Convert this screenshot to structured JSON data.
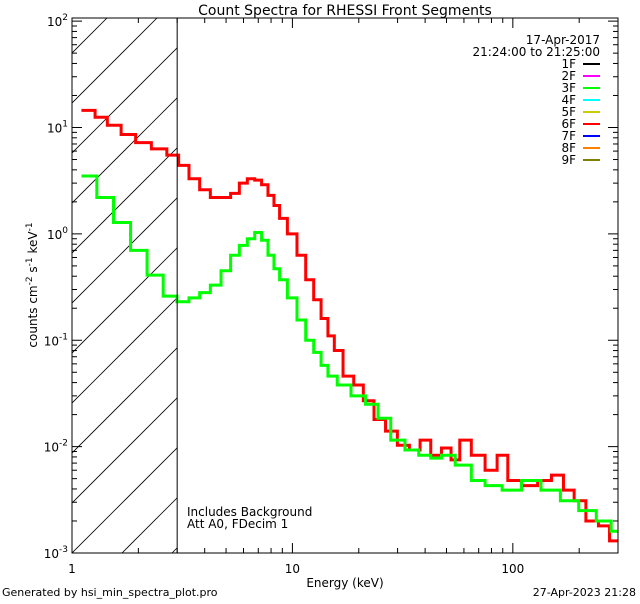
{
  "chart_data": {
    "type": "line",
    "title": "Count Spectra for RHESSI Front Segments",
    "xlabel": "Energy (keV)",
    "ylabel": "counts cm-2 s-1 keV-1",
    "xscale": "log",
    "yscale": "log",
    "xlim": [
      1,
      300
    ],
    "ylim": [
      0.001,
      107
    ],
    "x_ticks": [
      "1",
      "10",
      "100"
    ],
    "y_ticks": [
      {
        "base": "10",
        "exp": "2"
      },
      {
        "base": "10",
        "exp": "1"
      },
      {
        "base": "10",
        "exp": "0"
      },
      {
        "base": "10",
        "exp": "-1"
      },
      {
        "base": "10",
        "exp": "-2"
      },
      {
        "base": "10",
        "exp": "-3"
      }
    ],
    "date": "17-Apr-2017",
    "time_range": "21:24:00 to 21:25:00",
    "annotations": [
      "Includes Background",
      "Att A0, FDecim 1"
    ],
    "excluded_region_keV": [
      1,
      3
    ],
    "legend": [
      {
        "label": "1F",
        "color": "#000000"
      },
      {
        "label": "2F",
        "color": "#ff00ff"
      },
      {
        "label": "3F",
        "color": "#00ff00"
      },
      {
        "label": "4F",
        "color": "#00ffff"
      },
      {
        "label": "5F",
        "color": "#cccc00"
      },
      {
        "label": "6F",
        "color": "#ff0000"
      },
      {
        "label": "7F",
        "color": "#0000ff"
      },
      {
        "label": "8F",
        "color": "#ff8000"
      },
      {
        "label": "9F",
        "color": "#808000"
      }
    ],
    "legend_position": "top-right",
    "series": [
      {
        "name": "6F",
        "color": "#ff0000",
        "x": [
          1.2,
          1.35,
          1.55,
          1.8,
          2.1,
          2.5,
          2.9,
          3.2,
          3.6,
          4.0,
          4.5,
          5.0,
          5.5,
          6.0,
          6.5,
          7.0,
          7.5,
          8.0,
          8.5,
          9.0,
          10,
          11,
          12,
          13,
          14,
          15,
          16,
          18,
          20,
          22,
          25,
          28,
          32,
          36,
          40,
          45,
          50,
          55,
          60,
          70,
          80,
          90,
          100,
          120,
          140,
          160,
          180,
          200,
          230,
          260,
          290
        ],
        "y": [
          14.5,
          12.5,
          10.5,
          8.6,
          7.2,
          6.3,
          5.5,
          4.4,
          3.3,
          2.6,
          2.2,
          2.2,
          2.4,
          3.0,
          3.3,
          3.2,
          2.9,
          2.3,
          1.85,
          1.4,
          1.0,
          0.63,
          0.37,
          0.24,
          0.16,
          0.11,
          0.08,
          0.046,
          0.038,
          0.027,
          0.018,
          0.014,
          0.0103,
          0.0093,
          0.0115,
          0.0083,
          0.0097,
          0.0075,
          0.0115,
          0.0083,
          0.006,
          0.0083,
          0.0048,
          0.0043,
          0.0048,
          0.0054,
          0.0039,
          0.0031,
          0.002,
          0.0018,
          0.0013
        ]
      },
      {
        "name": "3F",
        "color": "#00ff00",
        "x": [
          1.2,
          1.4,
          1.7,
          2.0,
          2.4,
          2.8,
          3.2,
          3.6,
          4.0,
          4.5,
          5.0,
          5.5,
          6.0,
          6.5,
          7.0,
          7.5,
          8.0,
          8.5,
          9.0,
          10,
          11,
          12,
          13,
          14,
          15,
          17,
          20,
          23,
          26,
          30,
          35,
          40,
          45,
          50,
          60,
          70,
          80,
          100,
          120,
          150,
          180,
          220,
          260,
          300
        ],
        "y": [
          3.5,
          2.2,
          1.28,
          0.7,
          0.41,
          0.26,
          0.23,
          0.25,
          0.28,
          0.33,
          0.45,
          0.63,
          0.78,
          0.9,
          1.03,
          0.87,
          0.63,
          0.47,
          0.37,
          0.25,
          0.155,
          0.1,
          0.077,
          0.058,
          0.046,
          0.038,
          0.03,
          0.025,
          0.0185,
          0.0115,
          0.0093,
          0.0083,
          0.0078,
          0.0083,
          0.0067,
          0.0048,
          0.0043,
          0.0039,
          0.0048,
          0.0039,
          0.0031,
          0.0025,
          0.002,
          0.0016
        ]
      }
    ]
  },
  "footer": {
    "generated": "Generated by hsi_min_spectra_plot.pro",
    "timestamp": "27-Apr-2023 21:28"
  }
}
